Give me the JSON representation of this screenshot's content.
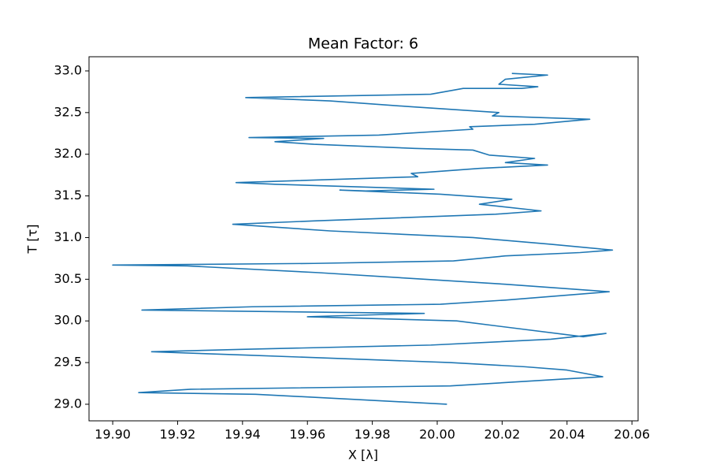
{
  "chart_data": {
    "type": "line",
    "title": "Mean Factor: 6",
    "xlabel": "X [λ]",
    "ylabel": "T [τ]",
    "xlim": [
      19.8927,
      20.0619
    ],
    "ylim": [
      28.801,
      33.17
    ],
    "grid": false,
    "xticks": [
      {
        "value": 19.9,
        "label": "19.90"
      },
      19.92,
      19.94,
      19.96,
      19.98,
      {
        "value": 20.0,
        "label": "20.00"
      },
      20.02,
      20.04,
      20.06
    ],
    "yticks": [
      {
        "value": 29.0,
        "label": "29.0"
      },
      29.5,
      {
        "value": 30.0,
        "label": "30.0"
      },
      30.5,
      {
        "value": 31.0,
        "label": "31.0"
      },
      31.5,
      {
        "value": 32.0,
        "label": "32.0"
      },
      32.5,
      {
        "value": 33.0,
        "label": "33.0"
      }
    ],
    "series": [
      {
        "color": "#1f77b4",
        "x": [
          20.003,
          19.944,
          19.908,
          19.924,
          20.004,
          20.038,
          20.051,
          20.04,
          20.027,
          20.004,
          19.941,
          19.912,
          19.941,
          19.998,
          20.035,
          20.052,
          20.045,
          20.006,
          19.96,
          19.968,
          19.996,
          19.909,
          19.943,
          20.001,
          20.021,
          20.053,
          20.021,
          19.963,
          19.923,
          19.9,
          19.962,
          20.005,
          20.021,
          20.044,
          20.054,
          20.035,
          20.011,
          19.967,
          19.937,
          19.962,
          20.018,
          20.032,
          20.018,
          20.013,
          20.023,
          20.001,
          19.97,
          19.978,
          19.999,
          19.95,
          19.938,
          19.994,
          19.992,
          20.013,
          20.034,
          20.021,
          20.03,
          20.016,
          20.011,
          19.993,
          19.962,
          19.95,
          19.965,
          19.942,
          19.982,
          20.011,
          20.01,
          20.03,
          20.047,
          20.017,
          20.019,
          19.992,
          19.967,
          19.941,
          19.998,
          20.008,
          20.026,
          20.031,
          20.019,
          20.021,
          20.034,
          20.023
        ],
        "values": [
          29.0,
          29.12,
          29.14,
          29.18,
          29.22,
          29.3,
          29.33,
          29.41,
          29.45,
          29.5,
          29.59,
          29.63,
          29.66,
          29.71,
          29.78,
          29.85,
          29.81,
          30.0,
          30.05,
          30.06,
          30.09,
          30.13,
          30.17,
          30.2,
          30.25,
          30.35,
          30.44,
          30.58,
          30.66,
          30.67,
          30.69,
          30.72,
          30.78,
          30.82,
          30.85,
          30.92,
          31.0,
          31.08,
          31.16,
          31.2,
          31.28,
          31.32,
          31.38,
          31.4,
          31.46,
          31.52,
          31.57,
          31.56,
          31.58,
          31.64,
          31.66,
          31.73,
          31.77,
          31.83,
          31.87,
          31.9,
          31.95,
          31.99,
          32.05,
          32.07,
          32.12,
          32.15,
          32.19,
          32.2,
          32.23,
          32.3,
          32.33,
          32.36,
          32.42,
          32.46,
          32.5,
          32.57,
          32.64,
          32.68,
          32.72,
          32.79,
          32.79,
          32.81,
          32.84,
          32.9,
          32.95,
          32.97
        ]
      }
    ]
  }
}
